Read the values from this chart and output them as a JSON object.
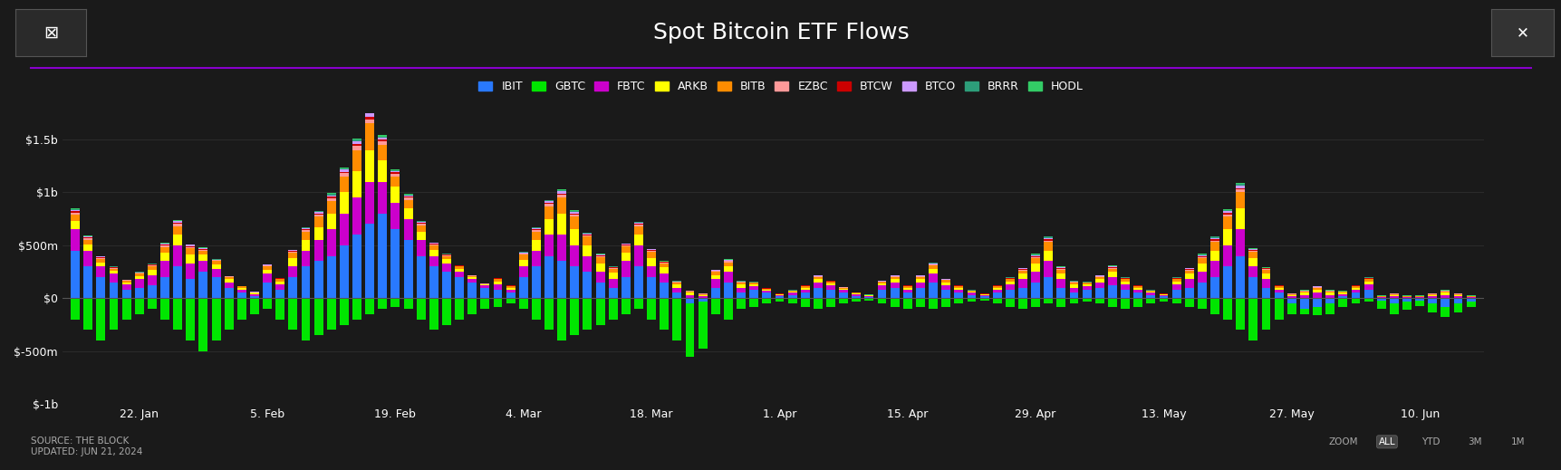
{
  "title": "Spot Bitcoin ETF Flows",
  "background_color": "#1a1a1a",
  "plot_background": "#1a1a1a",
  "text_color": "#ffffff",
  "grid_color": "#333333",
  "purple_line_color": "#8800cc",
  "source_text": "SOURCE: THE BLOCK\nUPDATED: JUN 21, 2024",
  "etfs": [
    "IBIT",
    "GBTC",
    "FBTC",
    "ARKB",
    "BITB",
    "EZBC",
    "BTCW",
    "BTCO",
    "BRRR",
    "HODL"
  ],
  "colors": [
    "#2979ff",
    "#00e600",
    "#cc00cc",
    "#ffff00",
    "#ff8c00",
    "#ff9999",
    "#cc0000",
    "#cc99ff",
    "#2d9e7a",
    "#33cc66"
  ],
  "ylim": [
    -1000,
    1750
  ],
  "yticks": [
    -1000,
    -500,
    0,
    500,
    1000,
    1500
  ],
  "ytick_labels": [
    "$-1b",
    "$-500m",
    "$0",
    "$500m",
    "$1b",
    "$1.5b"
  ],
  "xlabel_dates": [
    "22. Jan",
    "5. Feb",
    "19. Feb",
    "4. Mar",
    "18. Mar",
    "1. Apr",
    "15. Apr",
    "29. Apr",
    "13. May",
    "27. May",
    "10. Jun"
  ],
  "num_bars": 110,
  "bar_width": 0.08,
  "data": {
    "IBIT": [
      450,
      300,
      200,
      150,
      80,
      100,
      120,
      200,
      300,
      180,
      250,
      200,
      100,
      50,
      20,
      150,
      80,
      200,
      300,
      350,
      400,
      500,
      600,
      700,
      800,
      650,
      550,
      400,
      300,
      250,
      200,
      150,
      100,
      80,
      50,
      200,
      300,
      400,
      350,
      300,
      250,
      150,
      100,
      200,
      300,
      200,
      150,
      50,
      -50,
      -30,
      100,
      150,
      50,
      80,
      50,
      20,
      30,
      50,
      100,
      80,
      50,
      20,
      10,
      80,
      100,
      50,
      100,
      150,
      80,
      50,
      30,
      20,
      50,
      80,
      100,
      150,
      200,
      100,
      50,
      80,
      100,
      120,
      80,
      50,
      30,
      20,
      80,
      100,
      150,
      200,
      300,
      400,
      200,
      100,
      50,
      -50,
      -100,
      -80,
      -50,
      20,
      50,
      80,
      -20,
      -50,
      -30,
      -20,
      -50,
      -80,
      -50,
      -30
    ],
    "GBTC": [
      -200,
      -300,
      -400,
      -300,
      -200,
      -150,
      -100,
      -200,
      -300,
      -400,
      -500,
      -400,
      -300,
      -200,
      -150,
      -100,
      -200,
      -300,
      -400,
      -350,
      -300,
      -250,
      -200,
      -150,
      -100,
      -80,
      -100,
      -200,
      -300,
      -250,
      -200,
      -150,
      -100,
      -80,
      -50,
      -100,
      -200,
      -300,
      -400,
      -350,
      -300,
      -250,
      -200,
      -150,
      -100,
      -200,
      -300,
      -400,
      -500,
      -450,
      -150,
      -200,
      -100,
      -80,
      -50,
      -30,
      -50,
      -80,
      -100,
      -80,
      -50,
      -30,
      -20,
      -50,
      -80,
      -100,
      -80,
      -100,
      -80,
      -50,
      -30,
      -20,
      -50,
      -80,
      -100,
      -80,
      -50,
      -80,
      -50,
      -30,
      -50,
      -80,
      -100,
      -80,
      -50,
      -30,
      -50,
      -80,
      -100,
      -150,
      -200,
      -300,
      -400,
      -300,
      -200,
      -100,
      -50,
      -80,
      -100,
      -80,
      -50,
      -30,
      -80,
      -100,
      -80,
      -50,
      -80,
      -100,
      -80,
      -50
    ],
    "FBTC": [
      200,
      150,
      100,
      80,
      50,
      80,
      100,
      150,
      200,
      150,
      100,
      80,
      50,
      30,
      20,
      80,
      50,
      100,
      150,
      200,
      250,
      300,
      350,
      400,
      300,
      250,
      200,
      150,
      100,
      80,
      50,
      30,
      20,
      50,
      30,
      100,
      150,
      200,
      250,
      200,
      150,
      100,
      80,
      150,
      200,
      100,
      80,
      50,
      30,
      20,
      80,
      100,
      50,
      30,
      20,
      10,
      20,
      30,
      50,
      40,
      30,
      20,
      10,
      40,
      50,
      30,
      50,
      80,
      40,
      30,
      20,
      10,
      30,
      50,
      80,
      100,
      150,
      80,
      50,
      30,
      50,
      80,
      50,
      30,
      20,
      10,
      50,
      80,
      100,
      150,
      200,
      250,
      100,
      80,
      30,
      20,
      30,
      50,
      30,
      20,
      30,
      50,
      10,
      20,
      10,
      10,
      20,
      30,
      20,
      10
    ],
    "ARKB": [
      80,
      60,
      40,
      30,
      20,
      30,
      50,
      80,
      100,
      80,
      60,
      40,
      30,
      20,
      10,
      40,
      30,
      80,
      100,
      120,
      150,
      200,
      250,
      300,
      200,
      150,
      100,
      80,
      60,
      40,
      30,
      20,
      10,
      30,
      20,
      60,
      100,
      150,
      200,
      150,
      100,
      80,
      60,
      80,
      100,
      80,
      60,
      30,
      20,
      10,
      40,
      50,
      30,
      20,
      10,
      5,
      10,
      20,
      30,
      20,
      10,
      5,
      5,
      20,
      30,
      20,
      30,
      50,
      30,
      20,
      10,
      5,
      20,
      30,
      50,
      80,
      100,
      50,
      30,
      20,
      30,
      50,
      30,
      20,
      10,
      5,
      30,
      50,
      80,
      100,
      150,
      200,
      80,
      50,
      20,
      10,
      20,
      30,
      20,
      10,
      20,
      30,
      5,
      10,
      5,
      5,
      10,
      20,
      10,
      5
    ],
    "BITB": [
      60,
      40,
      30,
      20,
      15,
      20,
      30,
      50,
      80,
      60,
      40,
      30,
      20,
      10,
      5,
      30,
      20,
      50,
      80,
      100,
      120,
      150,
      200,
      250,
      150,
      100,
      80,
      60,
      40,
      30,
      20,
      10,
      5,
      20,
      15,
      50,
      80,
      120,
      150,
      120,
      80,
      60,
      40,
      60,
      80,
      60,
      40,
      20,
      15,
      10,
      30,
      40,
      20,
      15,
      10,
      5,
      10,
      15,
      20,
      15,
      10,
      5,
      3,
      15,
      20,
      15,
      20,
      30,
      20,
      15,
      10,
      5,
      15,
      20,
      30,
      50,
      80,
      40,
      20,
      15,
      20,
      30,
      20,
      15,
      10,
      5,
      20,
      30,
      50,
      80,
      120,
      150,
      60,
      40,
      15,
      10,
      15,
      20,
      15,
      10,
      15,
      20,
      5,
      10,
      5,
      5,
      10,
      15,
      10,
      5
    ],
    "EZBC": [
      20,
      15,
      10,
      8,
      5,
      8,
      10,
      15,
      20,
      15,
      10,
      8,
      5,
      3,
      2,
      8,
      5,
      10,
      15,
      20,
      25,
      30,
      35,
      40,
      30,
      25,
      20,
      15,
      10,
      8,
      5,
      3,
      2,
      5,
      3,
      10,
      15,
      20,
      25,
      20,
      15,
      10,
      8,
      10,
      15,
      10,
      8,
      5,
      3,
      2,
      8,
      10,
      5,
      3,
      2,
      1,
      2,
      3,
      5,
      4,
      3,
      2,
      1,
      3,
      5,
      3,
      5,
      8,
      5,
      3,
      2,
      1,
      3,
      5,
      8,
      10,
      15,
      8,
      5,
      3,
      5,
      8,
      5,
      3,
      2,
      1,
      5,
      8,
      10,
      15,
      20,
      25,
      10,
      8,
      3,
      2,
      3,
      5,
      3,
      2,
      3,
      5,
      1,
      2,
      1,
      1,
      2,
      3,
      2,
      1
    ],
    "BTCW": [
      10,
      8,
      5,
      3,
      2,
      3,
      5,
      8,
      10,
      8,
      5,
      3,
      2,
      1,
      1,
      3,
      2,
      5,
      8,
      10,
      12,
      15,
      20,
      25,
      15,
      12,
      10,
      8,
      5,
      3,
      2,
      1,
      1,
      3,
      2,
      5,
      8,
      10,
      12,
      10,
      8,
      5,
      3,
      5,
      8,
      5,
      3,
      2,
      1,
      1,
      3,
      5,
      2,
      2,
      1,
      1,
      1,
      2,
      3,
      2,
      1,
      1,
      1,
      2,
      3,
      2,
      3,
      5,
      2,
      2,
      1,
      1,
      2,
      3,
      5,
      8,
      10,
      5,
      2,
      2,
      3,
      5,
      3,
      2,
      1,
      1,
      3,
      5,
      8,
      10,
      12,
      15,
      5,
      3,
      2,
      1,
      2,
      3,
      2,
      1,
      2,
      3,
      1,
      1,
      1,
      1,
      1,
      2,
      1,
      1
    ],
    "BTCO": [
      15,
      10,
      8,
      5,
      3,
      5,
      8,
      10,
      15,
      10,
      8,
      5,
      3,
      2,
      1,
      5,
      3,
      8,
      10,
      12,
      15,
      20,
      25,
      30,
      20,
      15,
      12,
      10,
      8,
      5,
      3,
      2,
      1,
      3,
      2,
      8,
      10,
      15,
      20,
      15,
      10,
      8,
      5,
      8,
      10,
      8,
      5,
      3,
      2,
      1,
      5,
      8,
      3,
      2,
      2,
      1,
      2,
      3,
      5,
      3,
      2,
      1,
      1,
      3,
      5,
      3,
      5,
      8,
      3,
      2,
      2,
      1,
      3,
      5,
      8,
      10,
      15,
      8,
      3,
      2,
      5,
      8,
      5,
      3,
      2,
      1,
      5,
      8,
      10,
      15,
      20,
      25,
      8,
      5,
      3,
      2,
      3,
      5,
      3,
      2,
      3,
      5,
      1,
      2,
      1,
      1,
      2,
      3,
      2,
      1
    ],
    "BRRR": [
      8,
      5,
      3,
      2,
      1,
      2,
      3,
      5,
      8,
      5,
      3,
      2,
      1,
      1,
      1,
      2,
      1,
      3,
      5,
      8,
      10,
      12,
      15,
      20,
      12,
      10,
      8,
      5,
      3,
      2,
      1,
      1,
      1,
      2,
      1,
      3,
      5,
      8,
      10,
      8,
      5,
      3,
      2,
      3,
      5,
      3,
      2,
      1,
      1,
      1,
      2,
      3,
      2,
      1,
      1,
      1,
      1,
      1,
      2,
      2,
      1,
      1,
      1,
      2,
      3,
      2,
      3,
      5,
      2,
      1,
      1,
      1,
      2,
      3,
      5,
      8,
      10,
      5,
      2,
      1,
      3,
      5,
      3,
      2,
      1,
      1,
      3,
      5,
      8,
      10,
      12,
      15,
      5,
      3,
      2,
      1,
      2,
      3,
      2,
      1,
      2,
      3,
      1,
      1,
      1,
      1,
      1,
      2,
      1,
      1
    ],
    "HODL": [
      5,
      3,
      2,
      1,
      1,
      1,
      2,
      3,
      5,
      3,
      2,
      1,
      1,
      1,
      1,
      1,
      1,
      2,
      3,
      5,
      8,
      10,
      12,
      15,
      10,
      8,
      5,
      3,
      2,
      1,
      1,
      1,
      1,
      1,
      1,
      2,
      3,
      5,
      8,
      5,
      3,
      2,
      1,
      2,
      3,
      2,
      1,
      1,
      1,
      1,
      1,
      2,
      1,
      1,
      1,
      1,
      1,
      1,
      2,
      1,
      1,
      1,
      1,
      1,
      2,
      1,
      2,
      3,
      1,
      1,
      1,
      1,
      1,
      2,
      3,
      5,
      8,
      3,
      1,
      1,
      2,
      3,
      2,
      1,
      1,
      1,
      2,
      3,
      5,
      8,
      10,
      12,
      3,
      2,
      1,
      1,
      1,
      2,
      1,
      1,
      1,
      2,
      1,
      1,
      1,
      1,
      1,
      1,
      1,
      1
    ]
  }
}
